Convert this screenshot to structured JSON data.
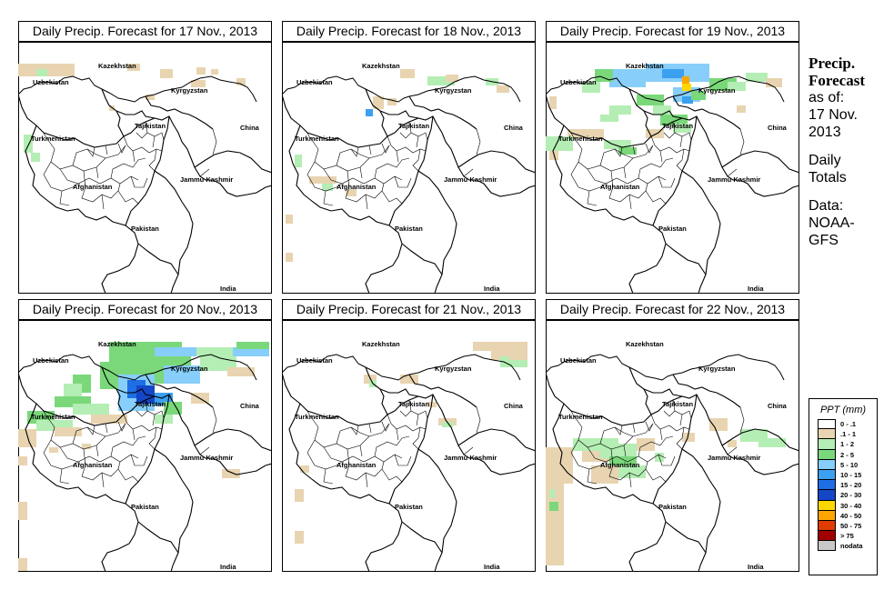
{
  "panels": [
    {
      "title": "Daily Precip. Forecast for  17 Nov., 2013"
    },
    {
      "title": "Daily Precip. Forecast for  18 Nov., 2013"
    },
    {
      "title": "Daily Precip. Forecast for  19 Nov., 2013"
    },
    {
      "title": "Daily Precip. Forecast for  20 Nov., 2013"
    },
    {
      "title": "Daily Precip. Forecast for  21 Nov., 2013"
    },
    {
      "title": "Daily Precip. Forecast for  22 Nov., 2013"
    }
  ],
  "map_labels": {
    "kazakhstan": "Kazekhstan",
    "uzbekistan": "Uzbekistan",
    "kyrgyzstan": "Kyrgyzstan",
    "tajikistan": "Tajikistan",
    "turkmenistan": "Turkmenistan",
    "china": "China",
    "afghanistan": "Afghanistan",
    "jammu_kashmir": "Jammu Kashmir",
    "pakistan": "Pakistan",
    "india": "India"
  },
  "sidebar": {
    "heading": [
      "Precip.",
      "Forecast"
    ],
    "lines": [
      "as of:",
      "17 Nov.",
      "2013",
      "",
      "Daily",
      "Totals",
      "",
      "Data:",
      "NOAA-",
      "GFS"
    ]
  },
  "legend": {
    "title": "PPT (mm)",
    "classes": [
      {
        "label": "0 - .1",
        "color": "#ffffff"
      },
      {
        "label": ".1 - 1",
        "color": "#e8d4b0"
      },
      {
        "label": "1 - 2",
        "color": "#b4eeb4"
      },
      {
        "label": "2 - 5",
        "color": "#7ad87a"
      },
      {
        "label": "5 - 10",
        "color": "#87cefa"
      },
      {
        "label": "10 - 15",
        "color": "#3ca0f0"
      },
      {
        "label": "15 - 20",
        "color": "#1e6ee6"
      },
      {
        "label": "20 - 30",
        "color": "#1446c8"
      },
      {
        "label": "30 - 40",
        "color": "#ffd700"
      },
      {
        "label": "40 - 50",
        "color": "#ffa500"
      },
      {
        "label": "50 - 75",
        "color": "#e03c00"
      },
      {
        "label": "> 75",
        "color": "#a00000"
      },
      {
        "label": "nodata",
        "color": "#c8c8c8"
      }
    ]
  }
}
